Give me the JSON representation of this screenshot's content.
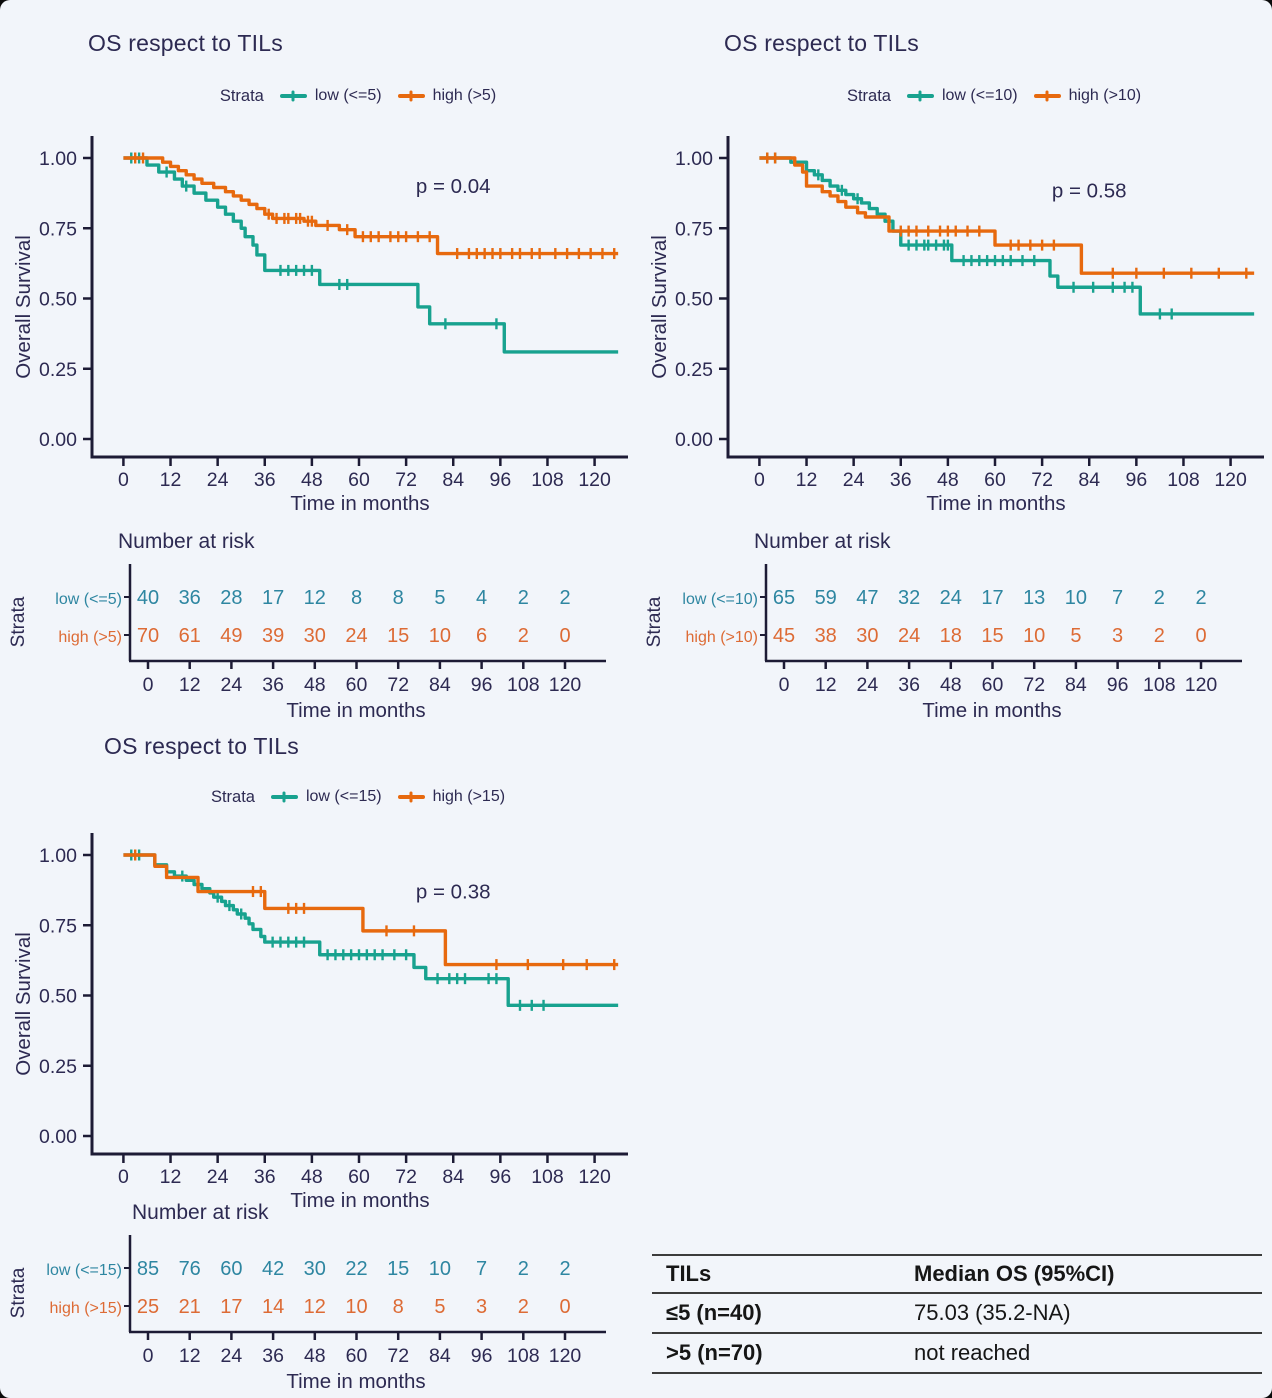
{
  "colors": {
    "teal": "#18A28F",
    "orange": "#E7690E",
    "risk_low": "#2E86A1",
    "risk_high": "#DD6B35",
    "text_dark": "#2D2A52",
    "axis": "#1D1B35",
    "table_text": "#161616"
  },
  "shared": {
    "strata_label": "Strata",
    "xlabel": "Time in months",
    "ylabel": "Overall Survival",
    "risk_title": "Number at risk",
    "strata_axis_label": "Strata",
    "x_ticks": [
      0,
      12,
      24,
      36,
      48,
      60,
      72,
      84,
      96,
      108,
      120
    ],
    "y_ticks": [
      "0.00",
      "0.25",
      "0.50",
      "0.75",
      "1.00"
    ]
  },
  "chart_data": [
    {
      "type": "line",
      "title": "OS respect to TILs",
      "p_value": "p = 0.04",
      "p_xy": [
        84,
        0.875
      ],
      "xlabel": "Time in months",
      "ylabel": "Overall Survival",
      "xlim": [
        0,
        120
      ],
      "ylim": [
        0,
        1
      ],
      "series": [
        {
          "name": "low (<=5)",
          "color_key": "teal",
          "risk_color_key": "risk_low",
          "steps": [
            [
              0,
              1
            ],
            [
              6,
              0.975
            ],
            [
              9,
              0.95
            ],
            [
              13,
              0.925
            ],
            [
              15,
              0.9
            ],
            [
              18,
              0.875
            ],
            [
              21,
              0.85
            ],
            [
              24,
              0.825
            ],
            [
              26,
              0.8
            ],
            [
              28,
              0.775
            ],
            [
              30,
              0.75
            ],
            [
              31,
              0.72
            ],
            [
              33,
              0.69
            ],
            [
              34,
              0.655
            ],
            [
              36,
              0.6
            ],
            [
              50,
              0.55
            ],
            [
              75,
              0.47
            ],
            [
              78,
              0.41
            ],
            [
              97,
              0.31
            ]
          ],
          "end": 126,
          "censors": [
            2,
            4,
            11,
            16,
            40,
            42,
            44,
            46,
            48,
            55,
            57,
            82,
            95
          ]
        },
        {
          "name": "high (>5)",
          "color_key": "orange",
          "risk_color_key": "risk_high",
          "steps": [
            [
              0,
              1
            ],
            [
              10,
              0.985
            ],
            [
              12,
              0.97
            ],
            [
              14,
              0.955
            ],
            [
              16,
              0.94
            ],
            [
              18,
              0.925
            ],
            [
              20,
              0.91
            ],
            [
              23,
              0.895
            ],
            [
              26,
              0.88
            ],
            [
              28,
              0.865
            ],
            [
              30,
              0.85
            ],
            [
              32,
              0.835
            ],
            [
              34,
              0.82
            ],
            [
              36,
              0.8
            ],
            [
              38,
              0.785
            ],
            [
              46,
              0.775
            ],
            [
              49,
              0.76
            ],
            [
              55,
              0.745
            ],
            [
              59,
              0.72
            ],
            [
              80,
              0.66
            ]
          ],
          "end": 126,
          "censors": [
            3,
            5,
            37,
            39,
            41,
            42,
            44,
            45,
            47,
            48,
            52,
            57,
            61,
            63,
            65,
            68,
            70,
            72,
            75,
            78,
            85,
            88,
            90,
            92,
            94,
            96,
            99,
            101,
            104,
            106,
            110,
            113,
            116,
            119,
            122,
            125
          ]
        }
      ],
      "risk_table": {
        "categories": [
          0,
          12,
          24,
          36,
          48,
          60,
          72,
          84,
          96,
          108,
          120
        ],
        "rows": [
          {
            "label": "low (<=5)",
            "values": [
              40,
              36,
              28,
              17,
              12,
              8,
              8,
              5,
              4,
              2,
              2
            ]
          },
          {
            "label": "high (>5)",
            "values": [
              70,
              61,
              49,
              39,
              30,
              24,
              15,
              10,
              6,
              2,
              0
            ]
          }
        ]
      }
    },
    {
      "type": "line",
      "title": "OS respect to TILs",
      "p_value": "p = 0.58",
      "p_xy": [
        84,
        0.86
      ],
      "xlabel": "Time in months",
      "ylabel": "Overall Survival",
      "xlim": [
        0,
        120
      ],
      "ylim": [
        0,
        1
      ],
      "series": [
        {
          "name": "low (<=10)",
          "color_key": "teal",
          "risk_color_key": "risk_low",
          "steps": [
            [
              0,
              1
            ],
            [
              8,
              0.985
            ],
            [
              12,
              0.955
            ],
            [
              14,
              0.94
            ],
            [
              16,
              0.92
            ],
            [
              18,
              0.9
            ],
            [
              20,
              0.885
            ],
            [
              22,
              0.87
            ],
            [
              24,
              0.855
            ],
            [
              26,
              0.84
            ],
            [
              28,
              0.82
            ],
            [
              30,
              0.8
            ],
            [
              32,
              0.775
            ],
            [
              34,
              0.74
            ],
            [
              36,
              0.69
            ],
            [
              49,
              0.635
            ],
            [
              74,
              0.58
            ],
            [
              76,
              0.54
            ],
            [
              97,
              0.445
            ]
          ],
          "end": 126,
          "censors": [
            2,
            4,
            15,
            21,
            25,
            38,
            40,
            42,
            43,
            45,
            47,
            48,
            52,
            54,
            56,
            58,
            60,
            62,
            64,
            67,
            70,
            80,
            85,
            90,
            93,
            95,
            102,
            105
          ]
        },
        {
          "name": "high (>10)",
          "color_key": "orange",
          "risk_color_key": "risk_high",
          "steps": [
            [
              0,
              1
            ],
            [
              9,
              0.975
            ],
            [
              11,
              0.95
            ],
            [
              12,
              0.9
            ],
            [
              16,
              0.88
            ],
            [
              18,
              0.865
            ],
            [
              20,
              0.845
            ],
            [
              22,
              0.825
            ],
            [
              25,
              0.805
            ],
            [
              27,
              0.79
            ],
            [
              33,
              0.74
            ],
            [
              60,
              0.69
            ],
            [
              82,
              0.59
            ]
          ],
          "end": 126,
          "censors": [
            2,
            4,
            36,
            38,
            40,
            43,
            46,
            48,
            50,
            53,
            56,
            64,
            66,
            69,
            72,
            75,
            90,
            96,
            103,
            110,
            117,
            124
          ]
        }
      ],
      "risk_table": {
        "categories": [
          0,
          12,
          24,
          36,
          48,
          60,
          72,
          84,
          96,
          108,
          120
        ],
        "rows": [
          {
            "label": "low (<=10)",
            "values": [
              65,
              59,
              47,
              32,
              24,
              17,
              13,
              10,
              7,
              2,
              2
            ]
          },
          {
            "label": "high (>10)",
            "values": [
              45,
              38,
              30,
              24,
              18,
              15,
              10,
              5,
              3,
              2,
              0
            ]
          }
        ]
      }
    },
    {
      "type": "line",
      "title": "OS respect to TILs",
      "p_value": "p = 0.38",
      "p_xy": [
        84,
        0.845
      ],
      "xlabel": "Time in months",
      "ylabel": "Overall Survival",
      "xlim": [
        0,
        120
      ],
      "ylim": [
        0,
        1
      ],
      "series": [
        {
          "name": "low (<=15)",
          "color_key": "teal",
          "risk_color_key": "risk_low",
          "steps": [
            [
              0,
              1
            ],
            [
              8,
              0.965
            ],
            [
              11,
              0.94
            ],
            [
              13,
              0.925
            ],
            [
              16,
              0.91
            ],
            [
              18,
              0.895
            ],
            [
              20,
              0.88
            ],
            [
              22,
              0.865
            ],
            [
              23,
              0.85
            ],
            [
              25,
              0.835
            ],
            [
              26,
              0.82
            ],
            [
              28,
              0.805
            ],
            [
              29,
              0.79
            ],
            [
              31,
              0.775
            ],
            [
              32,
              0.755
            ],
            [
              33,
              0.735
            ],
            [
              35,
              0.71
            ],
            [
              36,
              0.69
            ],
            [
              50,
              0.645
            ],
            [
              74,
              0.6
            ],
            [
              77,
              0.56
            ],
            [
              98,
              0.465
            ]
          ],
          "end": 126,
          "censors": [
            2,
            4,
            15,
            19,
            24,
            27,
            30,
            38,
            40,
            42,
            44,
            46,
            52,
            54,
            56,
            58,
            60,
            62,
            64,
            66,
            69,
            72,
            80,
            83,
            85,
            87,
            93,
            95,
            101,
            104,
            107
          ]
        },
        {
          "name": "high (>15)",
          "color_key": "orange",
          "risk_color_key": "risk_high",
          "steps": [
            [
              0,
              1
            ],
            [
              8,
              0.96
            ],
            [
              11,
              0.92
            ],
            [
              19,
              0.87
            ],
            [
              36,
              0.81
            ],
            [
              61,
              0.73
            ],
            [
              82,
              0.61
            ]
          ],
          "end": 126,
          "censors": [
            3,
            33,
            35,
            42,
            44,
            46,
            67,
            74,
            95,
            103,
            112,
            118,
            125
          ]
        }
      ],
      "risk_table": {
        "categories": [
          0,
          12,
          24,
          36,
          48,
          60,
          72,
          84,
          96,
          108,
          120
        ],
        "rows": [
          {
            "label": "low (<=15)",
            "values": [
              85,
              76,
              60,
              42,
              30,
              22,
              15,
              10,
              7,
              2,
              2
            ]
          },
          {
            "label": "high (>15)",
            "values": [
              25,
              21,
              17,
              14,
              12,
              10,
              8,
              5,
              3,
              2,
              0
            ]
          }
        ]
      }
    }
  ],
  "summary_table": {
    "headers": [
      "TILs",
      "Median OS (95%CI)"
    ],
    "rows": [
      [
        "≤5 (n=40)",
        "75.03 (35.2-NA)"
      ],
      [
        ">5 (n=70)",
        "not reached"
      ]
    ]
  }
}
